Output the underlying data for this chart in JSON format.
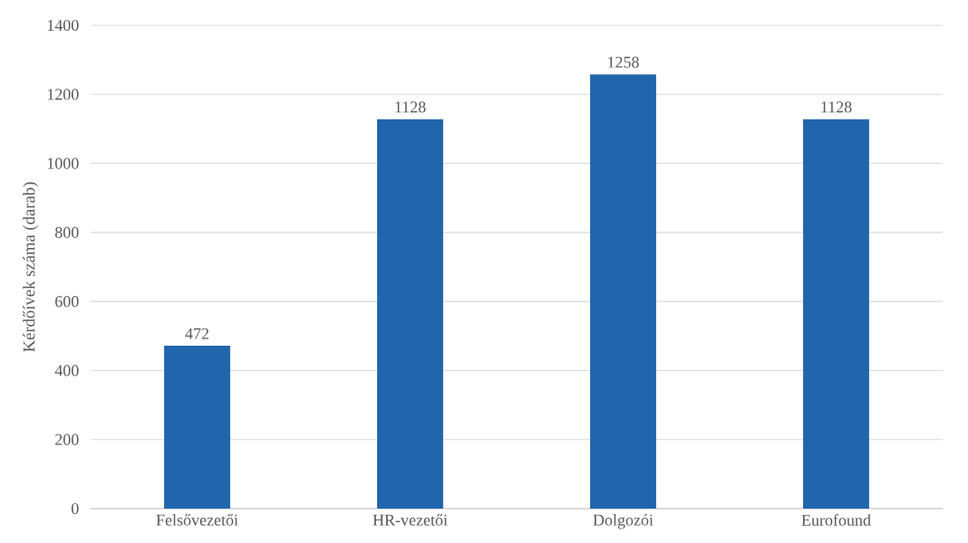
{
  "chart_data": {
    "type": "bar",
    "ylabel": "Kérdőívek száma (darab)",
    "categories": [
      "Felsővezetői",
      "HR-vezetői",
      "Dolgozói",
      "Eurofound"
    ],
    "values": [
      472,
      1128,
      1258,
      1128
    ],
    "color": "#2165ac",
    "ylim": [
      0,
      1400
    ],
    "yticks": [
      0,
      200,
      400,
      600,
      800,
      1000,
      1200,
      1400
    ],
    "grid": "y",
    "data_labels": true
  }
}
